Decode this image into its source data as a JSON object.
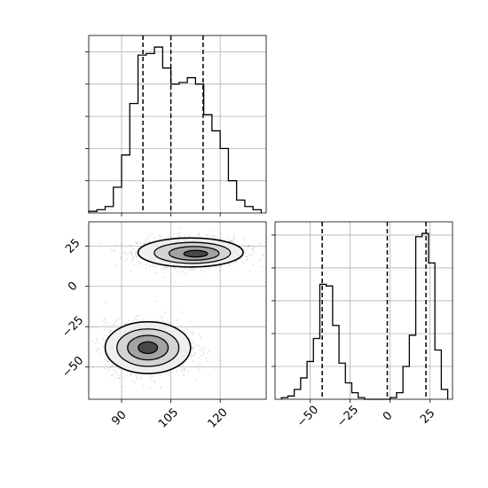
{
  "chart_data": [
    {
      "type": "histogram",
      "panel": "top-left",
      "variable": "x",
      "xlim": [
        80,
        134
      ],
      "bin_edges": [
        80,
        82.5,
        85,
        87.5,
        90,
        92.5,
        95,
        97.5,
        100,
        102.5,
        105,
        107.5,
        110,
        112.5,
        115,
        117.5,
        120,
        122.5,
        125,
        127.5,
        130,
        132.5
      ],
      "counts": [
        1,
        2,
        4,
        16,
        36,
        68,
        98,
        99,
        103,
        90,
        80,
        81,
        84,
        80,
        61,
        51,
        40,
        20,
        8,
        4,
        2
      ],
      "quantile_lines": [
        96.5,
        105.0,
        114.8
      ],
      "grid": true,
      "x_ticks": [
        90,
        105,
        120
      ],
      "x_tick_labels_visible": false
    },
    {
      "type": "scatter_density_contour",
      "panel": "bottom-left",
      "x_variable": "x",
      "y_variable": "y",
      "xlim": [
        80,
        134
      ],
      "ylim": [
        -70,
        40
      ],
      "clusters": [
        {
          "center": [
            111,
            21
          ],
          "spread": [
            8,
            4.5
          ],
          "peak_at": [
            113,
            20
          ]
        },
        {
          "center": [
            98,
            -38
          ],
          "spread": [
            6.5,
            8
          ],
          "peak_at": [
            98,
            -38
          ]
        }
      ],
      "contour_levels": 4,
      "grid": true,
      "x_ticks": [
        90,
        105,
        120
      ],
      "x_tick_labels": [
        "90",
        "105",
        "120"
      ],
      "y_ticks": [
        25,
        0,
        -25,
        -50
      ],
      "y_tick_labels": [
        "25",
        "0",
        "−25",
        "−50"
      ]
    },
    {
      "type": "histogram",
      "panel": "bottom-right",
      "variable": "y",
      "xlim": [
        -72,
        39
      ],
      "bin_edges": [
        -68,
        -64,
        -60,
        -56,
        -52,
        -48,
        -44,
        -40,
        -36,
        -32,
        -28,
        -24,
        -20,
        -16,
        -12,
        -8,
        -4,
        0,
        4,
        8,
        12,
        16,
        20,
        24,
        28,
        32,
        36
      ],
      "counts": [
        1,
        2,
        6,
        13,
        23,
        37,
        70,
        69,
        45,
        22,
        10,
        4,
        1,
        0,
        0,
        0,
        0,
        1,
        4,
        20,
        39,
        99,
        101,
        83,
        30,
        6
      ],
      "quantile_lines": [
        -42.5,
        -1.8,
        22.4
      ],
      "grid": true,
      "x_ticks": [
        -50,
        -25,
        0,
        25
      ],
      "x_tick_labels": [
        "−50",
        "−25",
        "0",
        "25"
      ]
    }
  ]
}
